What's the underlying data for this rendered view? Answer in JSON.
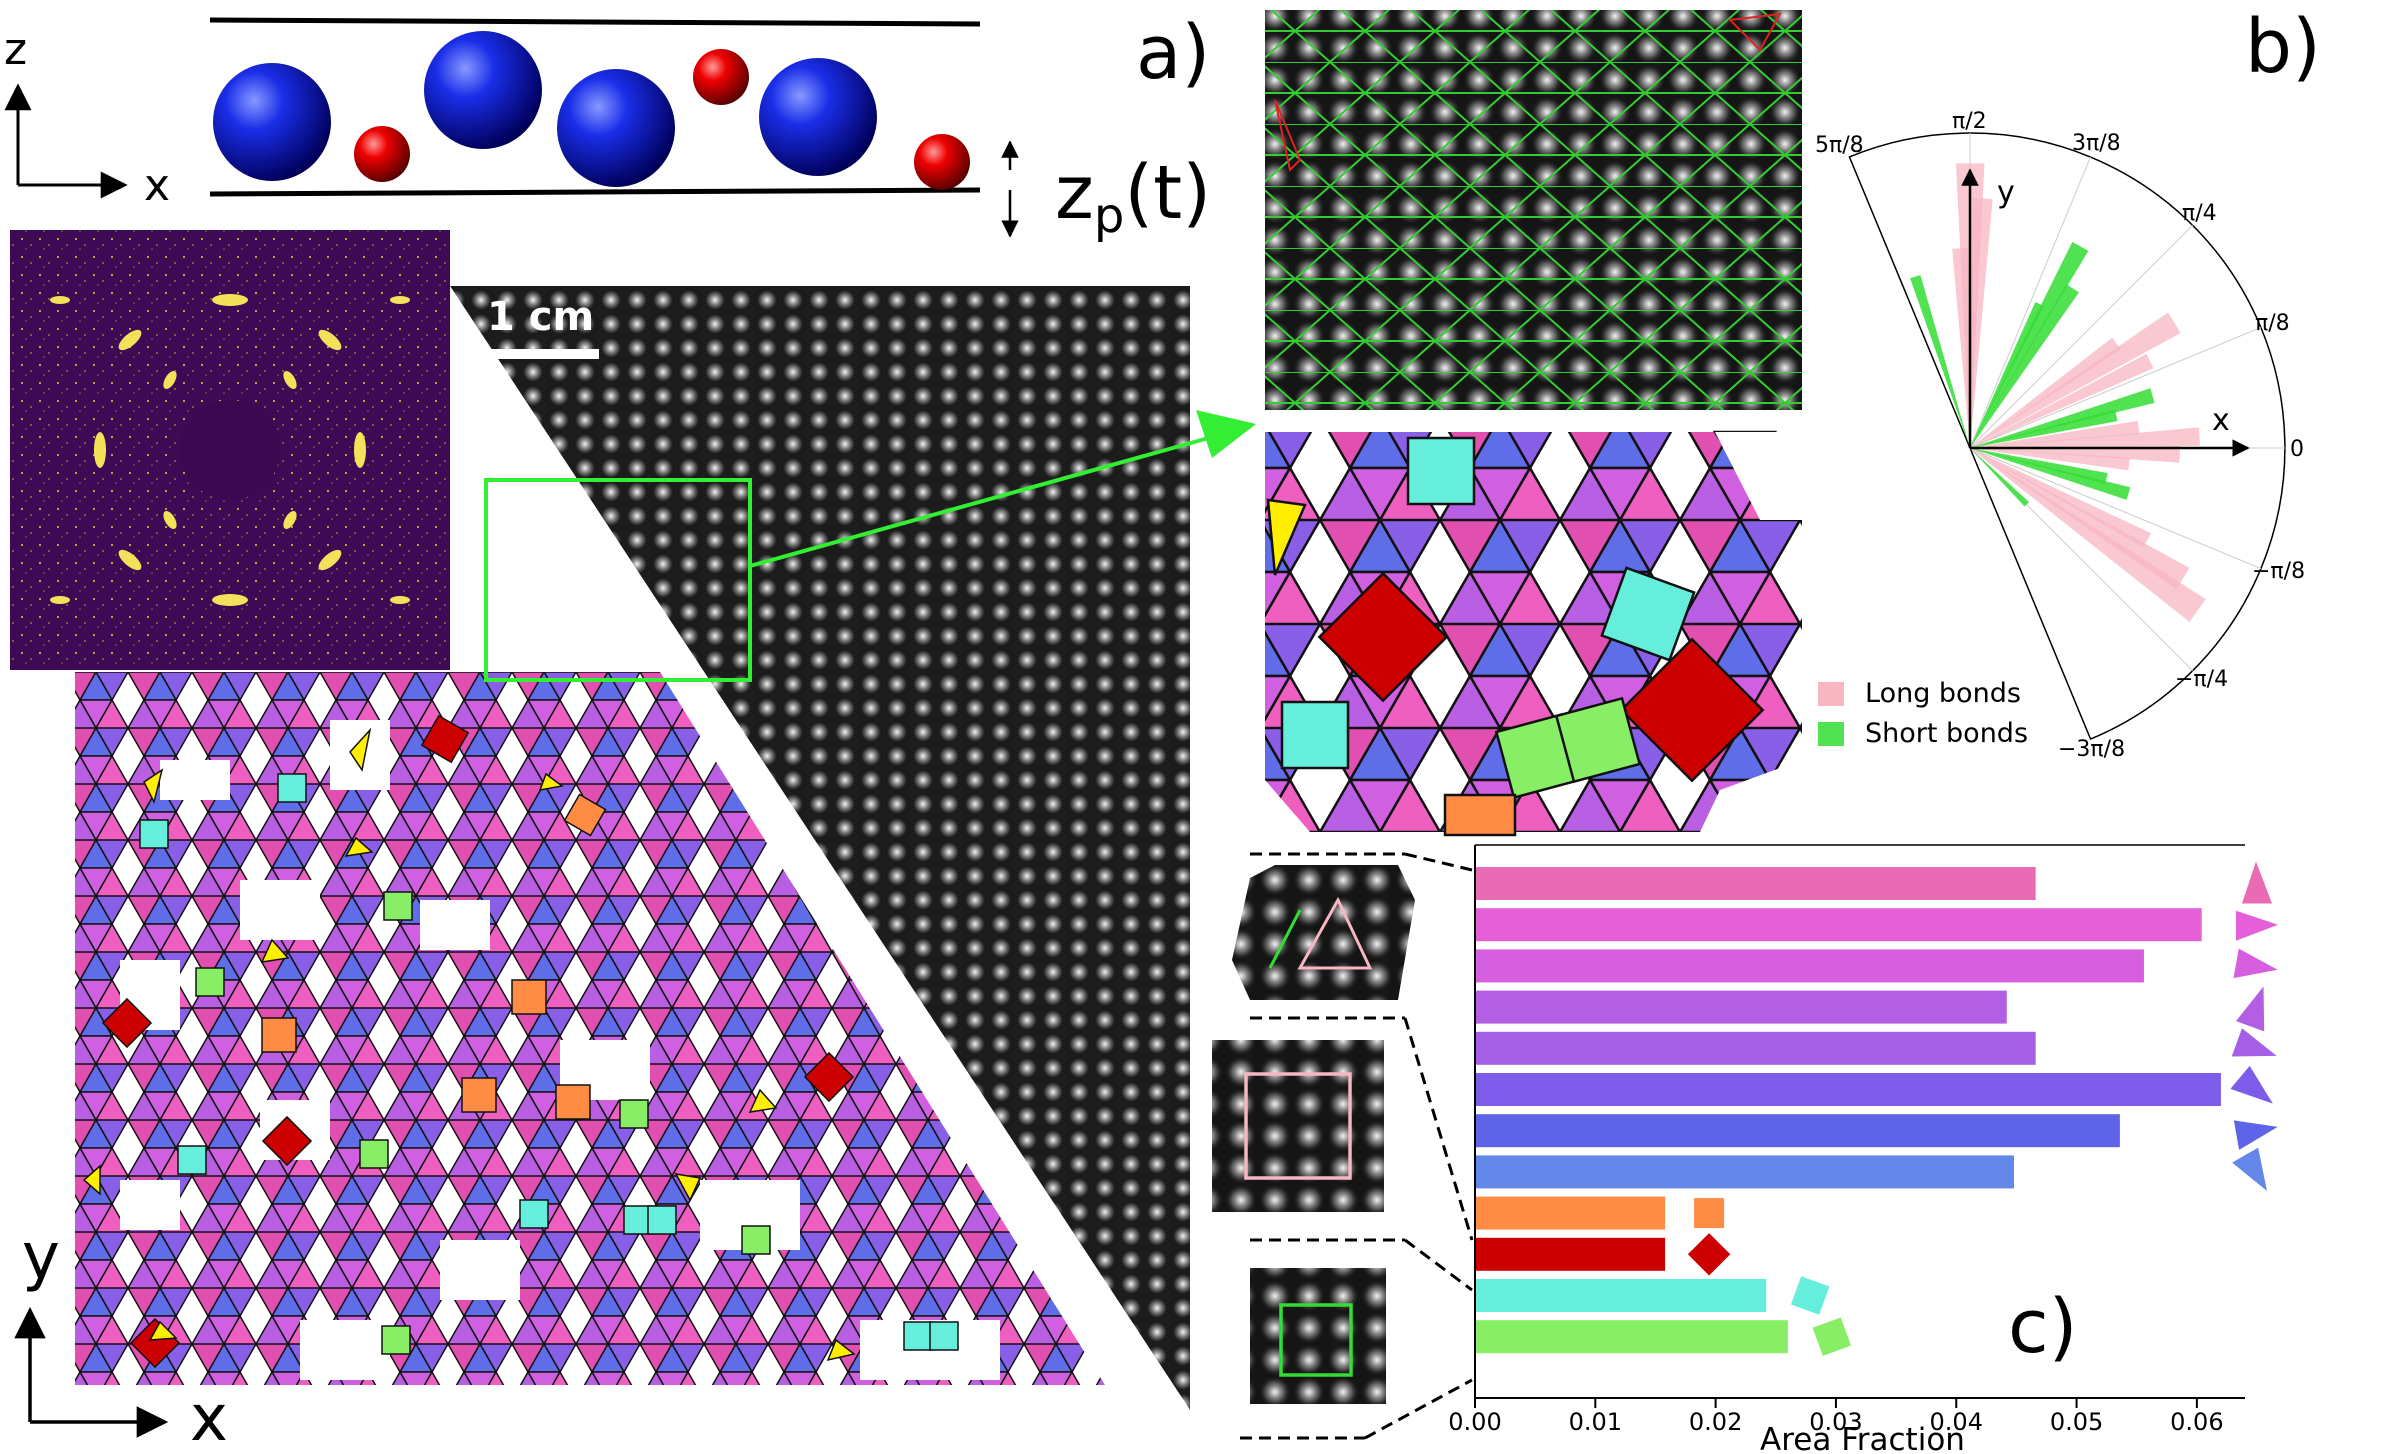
{
  "panel_labels": {
    "a": "a)",
    "b": "b)",
    "c": "c)"
  },
  "panel_a": {
    "axis_z": "z",
    "axis_x_top": "x",
    "zp_base": "z",
    "zp_sub": "p",
    "zp_arg": "(t)",
    "scale_bar": "1 cm",
    "axis_y_bottom": "y",
    "axis_x_bottom": "x"
  },
  "panel_b": {
    "axis_x": "x",
    "axis_y": "y",
    "angle_labels": [
      "5π/8",
      "π/2",
      "3π/8",
      "π/4",
      "π/8",
      "0",
      "−π/8",
      "−π/4",
      "−3π/8"
    ],
    "legend": [
      {
        "label": "Long bonds",
        "color": "#f7b6c2"
      },
      {
        "label": "Short bonds",
        "color": "#33dd33"
      }
    ]
  },
  "chart_data": {
    "type": "bar",
    "orientation": "horizontal",
    "xlabel": "Area Fraction",
    "xlim": [
      0,
      0.064
    ],
    "xticks": [
      "0.00",
      "0.01",
      "0.02",
      "0.03",
      "0.04",
      "0.05",
      "0.06"
    ],
    "xtick_values": [
      0,
      0.01,
      0.02,
      0.03,
      0.04,
      0.05,
      0.06
    ],
    "bars": [
      {
        "shape": "triangle",
        "value": 0.0466,
        "color": "#e96bb4"
      },
      {
        "shape": "triangle",
        "value": 0.0604,
        "color": "#e45fd8"
      },
      {
        "shape": "triangle",
        "value": 0.0556,
        "color": "#d65fe0"
      },
      {
        "shape": "triangle",
        "value": 0.0442,
        "color": "#b25fe3"
      },
      {
        "shape": "triangle",
        "value": 0.0466,
        "color": "#a55fe6"
      },
      {
        "shape": "triangle",
        "value": 0.062,
        "color": "#7c5ce8"
      },
      {
        "shape": "triangle",
        "value": 0.0536,
        "color": "#5f63e8"
      },
      {
        "shape": "triangle",
        "value": 0.0448,
        "color": "#6487ea"
      },
      {
        "shape": "square",
        "value": 0.0158,
        "color": "#ff8c42"
      },
      {
        "shape": "square",
        "value": 0.0158,
        "color": "#cc0000"
      },
      {
        "shape": "square",
        "value": 0.0242,
        "color": "#66eedd"
      },
      {
        "shape": "square",
        "value": 0.026,
        "color": "#88ee66"
      }
    ]
  }
}
